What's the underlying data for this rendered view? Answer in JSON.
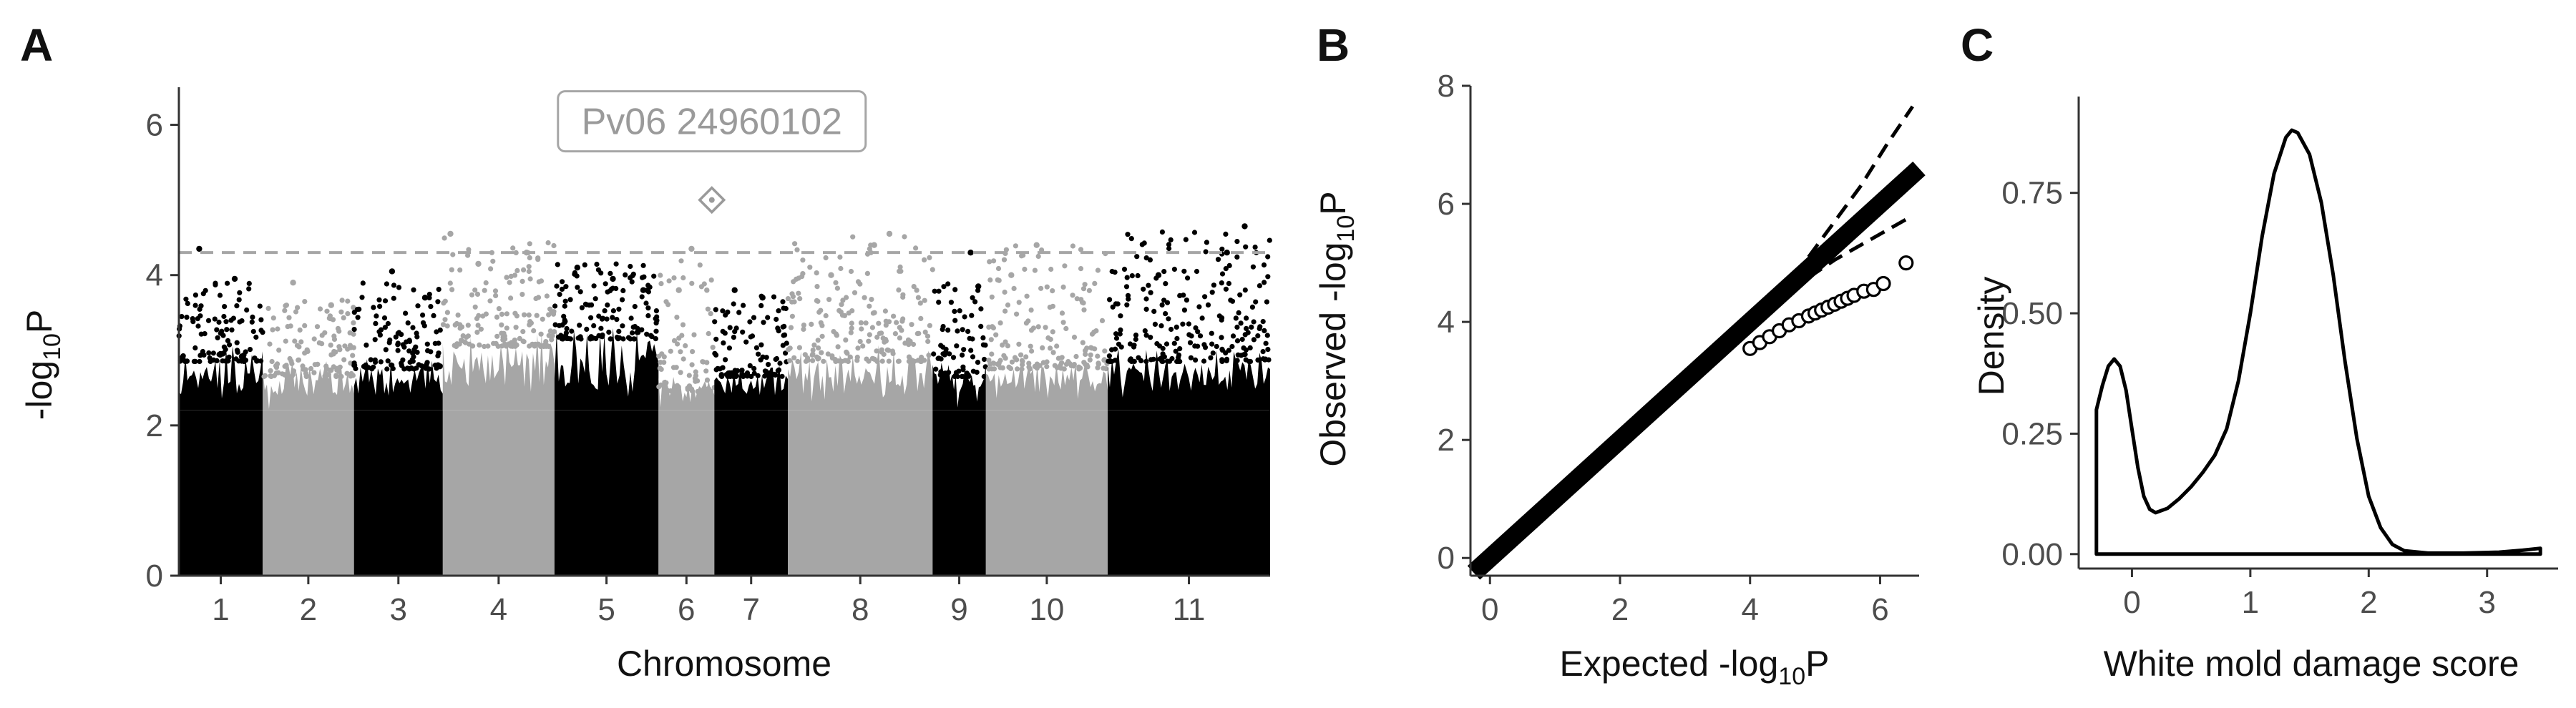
{
  "panels": {
    "A": {
      "letter": "A",
      "chart_data": {
        "type": "scatter",
        "subtype": "manhattan",
        "title": "",
        "xlabel": "Chromosome",
        "ylabel_base": "-log",
        "ylabel_sub": "10",
        "ylabel_tail": "P",
        "ylim": [
          0,
          6.5
        ],
        "yticks": [
          0,
          2,
          4,
          6
        ],
        "threshold": 4.3,
        "threshold_style": "dashed",
        "point_colors": [
          "#000000",
          "#a6a6a6"
        ],
        "chromosomes": [
          {
            "label": "1",
            "start": 0.0,
            "end": 3.3,
            "peak": 3.9,
            "ceiling": 3.1,
            "top": [
              [
                0.8,
                4.35
              ],
              [
                2.2,
                3.95
              ]
            ]
          },
          {
            "label": "2",
            "start": 3.3,
            "end": 6.9,
            "peak": 3.7,
            "ceiling": 2.9,
            "top": [
              [
                1.2,
                3.9
              ],
              [
                2.7,
                3.6
              ]
            ]
          },
          {
            "label": "3",
            "start": 6.9,
            "end": 10.4,
            "peak": 3.9,
            "ceiling": 3.0,
            "top": [
              [
                1.5,
                4.05
              ],
              [
                2.8,
                3.7
              ]
            ]
          },
          {
            "label": "4",
            "start": 10.4,
            "end": 14.8,
            "peak": 4.5,
            "ceiling": 3.3,
            "top": [
              [
                0.3,
                4.55
              ],
              [
                1.4,
                4.15
              ],
              [
                3.3,
                4.3
              ]
            ]
          },
          {
            "label": "5",
            "start": 14.8,
            "end": 18.9,
            "peak": 4.15,
            "ceiling": 3.4,
            "top": [
              [
                0.9,
                4.1
              ],
              [
                2.3,
                3.95
              ],
              [
                3.5,
                3.8
              ]
            ]
          },
          {
            "label": "6",
            "start": 18.9,
            "end": 21.1,
            "peak": 4.3,
            "ceiling": 2.7,
            "top": [
              [
                0.8,
                3.8
              ],
              [
                1.3,
                4.35
              ]
            ]
          },
          {
            "label": "7",
            "start": 21.1,
            "end": 24.0,
            "peak": 3.8,
            "ceiling": 2.9,
            "top": [
              [
                0.8,
                3.8
              ],
              [
                1.9,
                3.7
              ]
            ]
          },
          {
            "label": "8",
            "start": 24.0,
            "end": 29.7,
            "peak": 4.55,
            "ceiling": 3.1,
            "top": [
              [
                3.4,
                4.4
              ],
              [
                4.0,
                4.55
              ],
              [
                1.7,
                4.0
              ]
            ]
          },
          {
            "label": "9",
            "start": 29.7,
            "end": 31.8,
            "peak": 3.9,
            "ceiling": 2.9,
            "top": [
              [
                1.5,
                4.3
              ],
              [
                1.8,
                3.85
              ]
            ]
          },
          {
            "label": "10",
            "start": 31.8,
            "end": 36.6,
            "peak": 4.4,
            "ceiling": 3.0,
            "top": [
              [
                2.0,
                4.4
              ],
              [
                1.0,
                4.0
              ]
            ]
          },
          {
            "label": "11",
            "start": 36.6,
            "end": 43.0,
            "peak": 4.65,
            "ceiling": 3.1,
            "top": [
              [
                5.4,
                4.65
              ],
              [
                4.7,
                4.3
              ],
              [
                2.0,
                4.0
              ]
            ]
          }
        ],
        "annotation": {
          "label": "Pv06 24960102",
          "x": 21.0,
          "y": 5.0
        }
      }
    },
    "B": {
      "letter": "B",
      "chart_data": {
        "type": "scatter",
        "subtype": "qq",
        "title": "",
        "xlabel_base": "Expected -log",
        "xlabel_sub": "10",
        "xlabel_tail": "P",
        "ylabel_base": "Observed -log",
        "ylabel_sub": "10",
        "ylabel_tail": "P",
        "xlim": [
          -0.3,
          6.6
        ],
        "ylim": [
          -0.3,
          8.0
        ],
        "xticks": [
          0,
          2,
          4,
          6
        ],
        "yticks": [
          0,
          2,
          4,
          6,
          8
        ],
        "reference_line": {
          "slope": 1,
          "intercept": 0
        },
        "confidence_band": {
          "x": [
            4.9,
            5.3,
            5.7,
            6.1,
            6.5
          ],
          "upper": [
            5.1,
            5.7,
            6.3,
            7.0,
            7.65
          ],
          "lower": [
            4.75,
            5.05,
            5.3,
            5.55,
            5.8
          ]
        },
        "points": [
          {
            "x": 4.0,
            "y": 3.55
          },
          {
            "x": 4.15,
            "y": 3.65
          },
          {
            "x": 4.3,
            "y": 3.75
          },
          {
            "x": 4.45,
            "y": 3.85
          },
          {
            "x": 4.6,
            "y": 3.95
          },
          {
            "x": 4.75,
            "y": 4.02
          },
          {
            "x": 4.9,
            "y": 4.1
          },
          {
            "x": 5.0,
            "y": 4.15
          },
          {
            "x": 5.1,
            "y": 4.2
          },
          {
            "x": 5.2,
            "y": 4.25
          },
          {
            "x": 5.3,
            "y": 4.3
          },
          {
            "x": 5.4,
            "y": 4.35
          },
          {
            "x": 5.5,
            "y": 4.4
          },
          {
            "x": 5.6,
            "y": 4.45
          },
          {
            "x": 5.75,
            "y": 4.52
          },
          {
            "x": 5.9,
            "y": 4.55
          },
          {
            "x": 6.05,
            "y": 4.65
          },
          {
            "x": 6.4,
            "y": 5.0
          }
        ]
      }
    },
    "C": {
      "letter": "C",
      "chart_data": {
        "type": "line",
        "subtype": "density",
        "title": "",
        "xlabel": "White mold damage score",
        "ylabel": "Density",
        "xlim": [
          -0.45,
          3.6
        ],
        "ylim": [
          -0.03,
          0.95
        ],
        "xticks": [
          0,
          1,
          2,
          3
        ],
        "yticks": [
          0.0,
          0.25,
          0.5,
          0.75
        ],
        "ytick_labels": [
          "0.00",
          "0.25",
          "0.50",
          "0.75"
        ],
        "curve": [
          [
            -0.3,
            0.0
          ],
          [
            -0.3,
            0.3
          ],
          [
            -0.25,
            0.35
          ],
          [
            -0.2,
            0.39
          ],
          [
            -0.15,
            0.405
          ],
          [
            -0.1,
            0.39
          ],
          [
            -0.05,
            0.34
          ],
          [
            0.0,
            0.26
          ],
          [
            0.05,
            0.18
          ],
          [
            0.1,
            0.12
          ],
          [
            0.15,
            0.093
          ],
          [
            0.2,
            0.086
          ],
          [
            0.3,
            0.095
          ],
          [
            0.4,
            0.115
          ],
          [
            0.5,
            0.14
          ],
          [
            0.6,
            0.17
          ],
          [
            0.7,
            0.205
          ],
          [
            0.8,
            0.26
          ],
          [
            0.9,
            0.36
          ],
          [
            1.0,
            0.5
          ],
          [
            1.1,
            0.66
          ],
          [
            1.2,
            0.79
          ],
          [
            1.3,
            0.865
          ],
          [
            1.35,
            0.88
          ],
          [
            1.4,
            0.875
          ],
          [
            1.5,
            0.83
          ],
          [
            1.6,
            0.73
          ],
          [
            1.7,
            0.58
          ],
          [
            1.8,
            0.4
          ],
          [
            1.9,
            0.24
          ],
          [
            2.0,
            0.12
          ],
          [
            2.1,
            0.055
          ],
          [
            2.2,
            0.02
          ],
          [
            2.3,
            0.007
          ],
          [
            2.5,
            0.002
          ],
          [
            2.8,
            0.002
          ],
          [
            3.1,
            0.004
          ],
          [
            3.3,
            0.008
          ],
          [
            3.45,
            0.012
          ],
          [
            3.45,
            0.0
          ]
        ]
      }
    }
  }
}
